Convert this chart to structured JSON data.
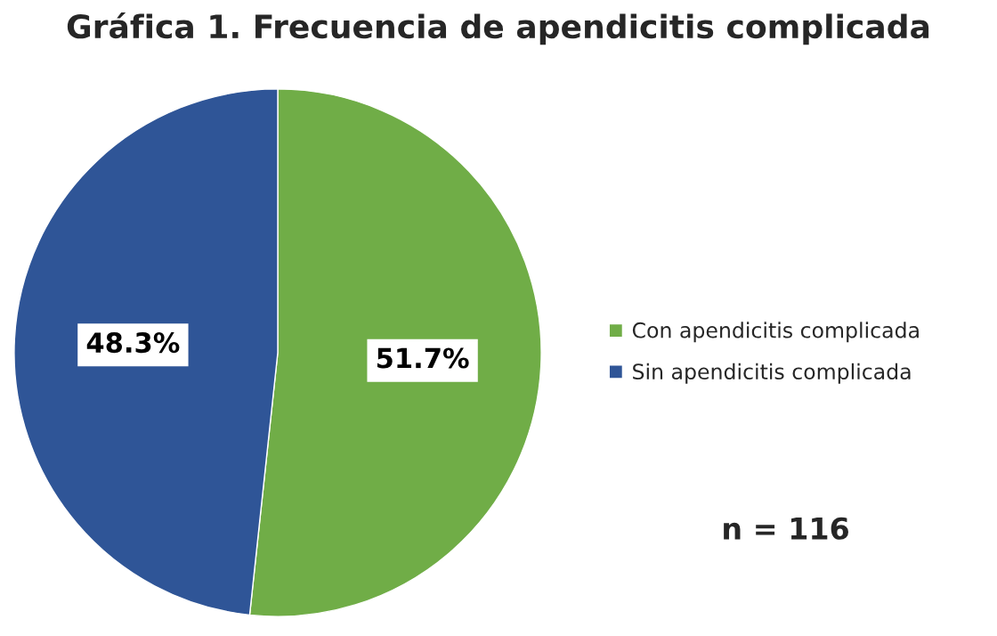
{
  "chart_data": {
    "type": "pie",
    "title": "Gráfica 1. Frecuencia de apendicitis complicada",
    "categories": [
      "Con apendicitis complicada",
      "Sin apendicitis complicada"
    ],
    "values": [
      51.7,
      48.3
    ],
    "colors": [
      "#70ad47",
      "#2f5597"
    ],
    "value_labels": [
      "51.7%",
      "48.3%"
    ],
    "legend": "right",
    "annotations": [
      "n = 116"
    ]
  }
}
